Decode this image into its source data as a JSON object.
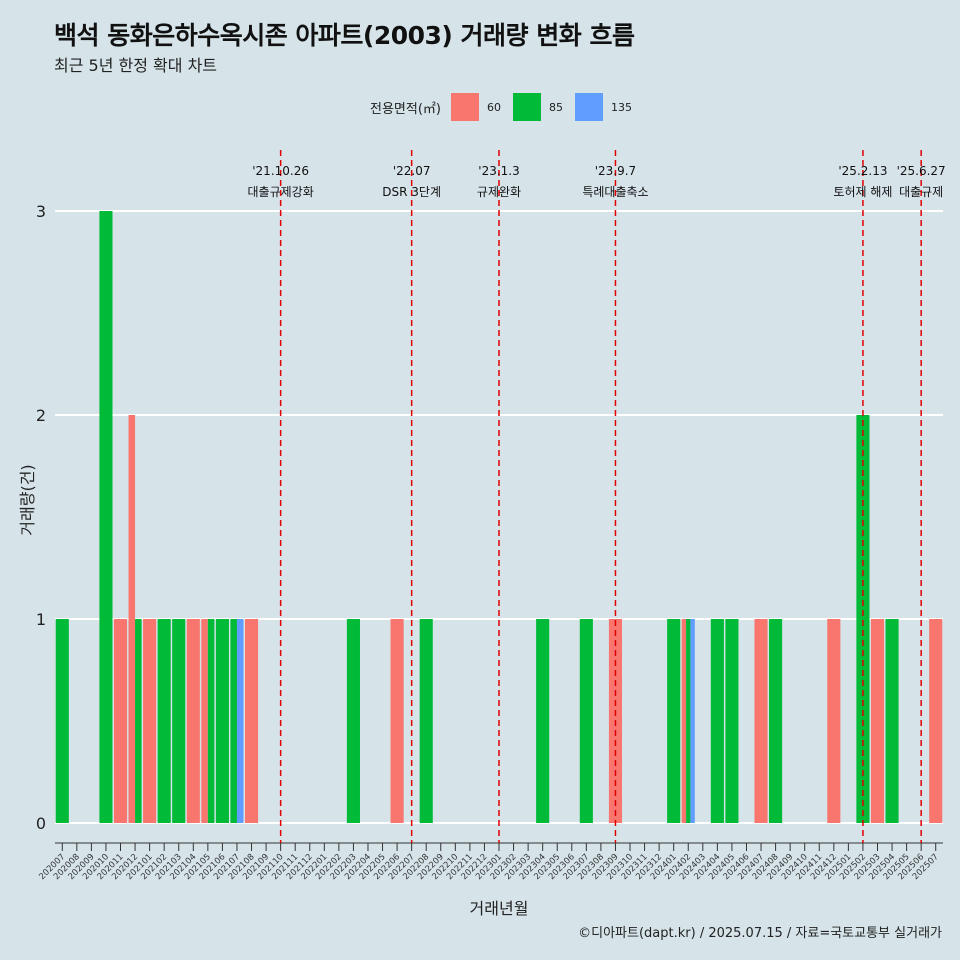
{
  "title": "백석 동화은하수옥시존 아파트(2003) 거래량 변화 흐름",
  "subtitle": "최근 5년 한정 확대 차트",
  "caption": "©디아파트(dapt.kr) / 2025.07.15 / 자료=국토교통부 실거래가",
  "legend": {
    "title": "전용면적(㎡)",
    "items": [
      {
        "label": "60",
        "color": "#f8766d"
      },
      {
        "label": "85",
        "color": "#00ba38"
      },
      {
        "label": "135",
        "color": "#619cff"
      }
    ]
  },
  "chart_data": {
    "type": "bar",
    "xlabel": "거래년월",
    "ylabel": "거래량(건)",
    "ylim": [
      0,
      3
    ],
    "yticks": [
      0,
      1,
      2,
      3
    ],
    "categories": [
      "202007",
      "202008",
      "202009",
      "202010",
      "202011",
      "202012",
      "202101",
      "202102",
      "202103",
      "202104",
      "202105",
      "202106",
      "202107",
      "202108",
      "202109",
      "202110",
      "202111",
      "202112",
      "202201",
      "202202",
      "202203",
      "202204",
      "202205",
      "202206",
      "202207",
      "202208",
      "202209",
      "202210",
      "202211",
      "202212",
      "202301",
      "202302",
      "202303",
      "202304",
      "202305",
      "202306",
      "202307",
      "202308",
      "202309",
      "202310",
      "202311",
      "202312",
      "202401",
      "202402",
      "202403",
      "202404",
      "202405",
      "202406",
      "202407",
      "202408",
      "202409",
      "202410",
      "202411",
      "202412",
      "202501",
      "202502",
      "202503",
      "202504",
      "202505",
      "202506",
      "202507"
    ],
    "series": [
      {
        "name": "60",
        "color": "#f8766d",
        "values": [
          0,
          0,
          0,
          0,
          1,
          2,
          1,
          0,
          0,
          1,
          1,
          0,
          0,
          1,
          0,
          0,
          0,
          0,
          0,
          0,
          0,
          0,
          0,
          1,
          0,
          0,
          0,
          0,
          0,
          0,
          0,
          0,
          0,
          0,
          0,
          0,
          0,
          0,
          1,
          0,
          0,
          0,
          0,
          1,
          0,
          0,
          0,
          0,
          1,
          0,
          0,
          0,
          0,
          1,
          0,
          0,
          1,
          0,
          0,
          0,
          1
        ]
      },
      {
        "name": "85",
        "color": "#00ba38",
        "values": [
          1,
          0,
          0,
          3,
          0,
          1,
          0,
          1,
          1,
          0,
          1,
          1,
          1,
          0,
          0,
          0,
          0,
          0,
          0,
          0,
          1,
          0,
          0,
          0,
          0,
          1,
          0,
          0,
          0,
          0,
          0,
          0,
          0,
          1,
          0,
          0,
          1,
          0,
          0,
          0,
          0,
          0,
          1,
          1,
          0,
          1,
          1,
          0,
          0,
          1,
          0,
          0,
          0,
          0,
          0,
          2,
          0,
          1,
          0,
          0,
          0
        ]
      },
      {
        "name": "135",
        "color": "#619cff",
        "values": [
          0,
          0,
          0,
          0,
          0,
          0,
          0,
          0,
          0,
          0,
          0,
          0,
          1,
          0,
          0,
          0,
          0,
          0,
          0,
          0,
          0,
          0,
          0,
          0,
          0,
          0,
          0,
          0,
          0,
          0,
          0,
          0,
          0,
          0,
          0,
          0,
          0,
          0,
          0,
          0,
          0,
          0,
          0,
          1,
          0,
          0,
          0,
          0,
          0,
          0,
          0,
          0,
          0,
          0,
          0,
          0,
          0,
          0,
          0,
          0,
          0
        ]
      }
    ],
    "annotations": [
      {
        "date": "'21.10.26",
        "label": "대출규제강화",
        "x": "202110"
      },
      {
        "date": "'22.07",
        "label": "DSR 3단계",
        "x": "202207"
      },
      {
        "date": "'23.1.3",
        "label": "규제완화",
        "x": "202301"
      },
      {
        "date": "'23.9.7",
        "label": "특례대출축소",
        "x": "202309"
      },
      {
        "date": "'25.2.13",
        "label": "토허제 해제",
        "x": "202502"
      },
      {
        "date": "'25.6.27",
        "label": "대출규제",
        "x": "202506"
      }
    ]
  }
}
